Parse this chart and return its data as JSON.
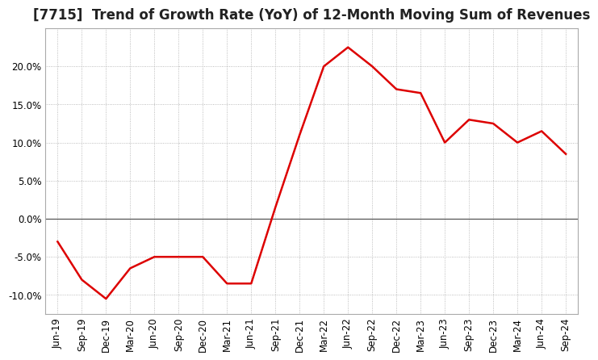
{
  "title": "[7715]  Trend of Growth Rate (YoY) of 12-Month Moving Sum of Revenues",
  "x_labels": [
    "Jun-19",
    "Sep-19",
    "Dec-19",
    "Mar-20",
    "Jun-20",
    "Sep-20",
    "Dec-20",
    "Mar-21",
    "Jun-21",
    "Sep-21",
    "Dec-21",
    "Mar-22",
    "Jun-22",
    "Sep-22",
    "Dec-22",
    "Mar-23",
    "Jun-23",
    "Sep-23",
    "Dec-23",
    "Mar-24",
    "Jun-24",
    "Sep-24"
  ],
  "y_values": [
    -3.0,
    -8.0,
    -10.5,
    -6.5,
    -5.0,
    -5.0,
    -5.0,
    -8.5,
    -8.5,
    1.5,
    11.0,
    20.0,
    22.5,
    20.0,
    17.0,
    16.5,
    10.0,
    13.0,
    12.5,
    10.0,
    11.5,
    8.5
  ],
  "line_color": "#dd0000",
  "background_color": "#ffffff",
  "grid_color": "#aaaaaa",
  "ylim": [
    -12.5,
    25
  ],
  "yticks": [
    -10.0,
    -5.0,
    0.0,
    5.0,
    10.0,
    15.0,
    20.0
  ],
  "title_fontsize": 12,
  "tick_fontsize": 8.5
}
